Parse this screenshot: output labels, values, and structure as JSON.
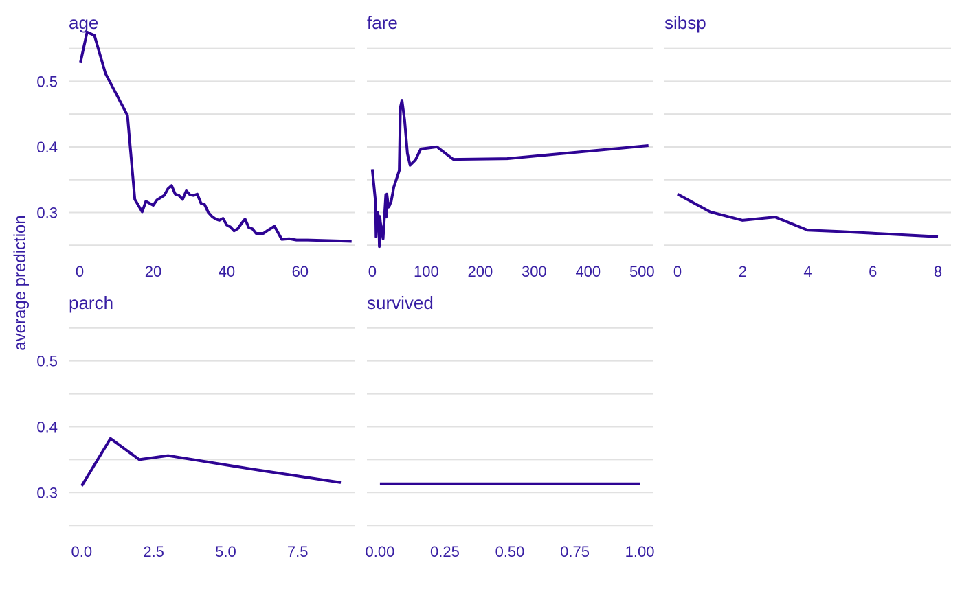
{
  "colors": {
    "line": "#2e0494",
    "text": "#371ea3",
    "grid": "#e1e1e1"
  },
  "ylabel": "average prediction",
  "chart_data": {
    "type": "line",
    "ylabel": "average prediction",
    "grid": true,
    "ylim": [
      0.245,
      0.58
    ],
    "y_ticks": [
      0.3,
      0.4,
      0.5
    ],
    "panels": [
      {
        "title": "age",
        "xlim": [
          -3,
          75
        ],
        "x_ticks": [
          0,
          20,
          40,
          60
        ],
        "x_tick_labels": [
          "0",
          "20",
          "40",
          "60"
        ],
        "x": [
          0.17,
          2,
          4,
          7,
          13,
          15,
          17,
          18,
          20,
          21,
          23,
          24,
          25,
          26,
          27,
          28,
          29,
          30,
          31,
          32,
          33,
          34,
          35,
          36,
          37,
          38,
          39,
          40,
          41,
          42,
          43,
          44,
          45,
          46,
          47,
          48,
          50,
          51,
          53,
          55,
          57,
          59,
          62,
          74
        ],
        "y": [
          0.528,
          0.575,
          0.57,
          0.512,
          0.448,
          0.32,
          0.301,
          0.317,
          0.311,
          0.319,
          0.326,
          0.336,
          0.341,
          0.328,
          0.326,
          0.32,
          0.333,
          0.327,
          0.326,
          0.328,
          0.314,
          0.312,
          0.3,
          0.294,
          0.29,
          0.288,
          0.291,
          0.281,
          0.278,
          0.272,
          0.275,
          0.283,
          0.29,
          0.277,
          0.275,
          0.268,
          0.268,
          0.272,
          0.279,
          0.259,
          0.26,
          0.258,
          0.258,
          0.256
        ]
      },
      {
        "title": "fare",
        "xlim": [
          -10,
          520
        ],
        "x_ticks": [
          0,
          100,
          200,
          300,
          400,
          500
        ],
        "x_tick_labels": [
          "0",
          "100",
          "200",
          "300",
          "400",
          "500"
        ],
        "x": [
          0,
          6,
          7,
          8,
          10,
          12,
          13,
          14,
          15,
          17,
          20,
          25,
          26,
          27,
          30,
          32,
          35,
          40,
          50,
          52,
          55,
          60,
          65,
          70,
          80,
          90,
          100,
          120,
          150,
          250,
          512
        ],
        "y": [
          0.366,
          0.315,
          0.263,
          0.28,
          0.3,
          0.291,
          0.248,
          0.294,
          0.285,
          0.275,
          0.26,
          0.327,
          0.293,
          0.328,
          0.308,
          0.311,
          0.317,
          0.339,
          0.364,
          0.46,
          0.471,
          0.44,
          0.39,
          0.372,
          0.38,
          0.397,
          0.398,
          0.4,
          0.381,
          0.382,
          0.402
        ]
      },
      {
        "title": "sibsp",
        "xlim": [
          -0.4,
          8.4
        ],
        "x_ticks": [
          0,
          2,
          4,
          6,
          8
        ],
        "x_tick_labels": [
          "0",
          "2",
          "4",
          "6",
          "8"
        ],
        "x": [
          0,
          1,
          2,
          3,
          4,
          5,
          8
        ],
        "y": [
          0.328,
          0.301,
          0.288,
          0.293,
          0.273,
          0.271,
          0.263
        ]
      },
      {
        "title": "parch",
        "xlim": [
          -0.45,
          9.5
        ],
        "x_ticks": [
          0,
          2.5,
          5,
          7.5
        ],
        "x_tick_labels": [
          "0.0",
          "2.5",
          "5.0",
          "7.5"
        ],
        "x": [
          0,
          1,
          2,
          3,
          4,
          5,
          6,
          9
        ],
        "y": [
          0.31,
          0.382,
          0.35,
          0.356,
          0.349,
          0.342,
          0.335,
          0.315
        ]
      },
      {
        "title": "survived",
        "xlim": [
          -0.05,
          1.05
        ],
        "x_ticks": [
          0,
          0.25,
          0.5,
          0.75,
          1
        ],
        "x_tick_labels": [
          "0.00",
          "0.25",
          "0.50",
          "0.75",
          "1.00"
        ],
        "x": [
          0,
          1
        ],
        "y": [
          0.313,
          0.313
        ]
      }
    ]
  }
}
